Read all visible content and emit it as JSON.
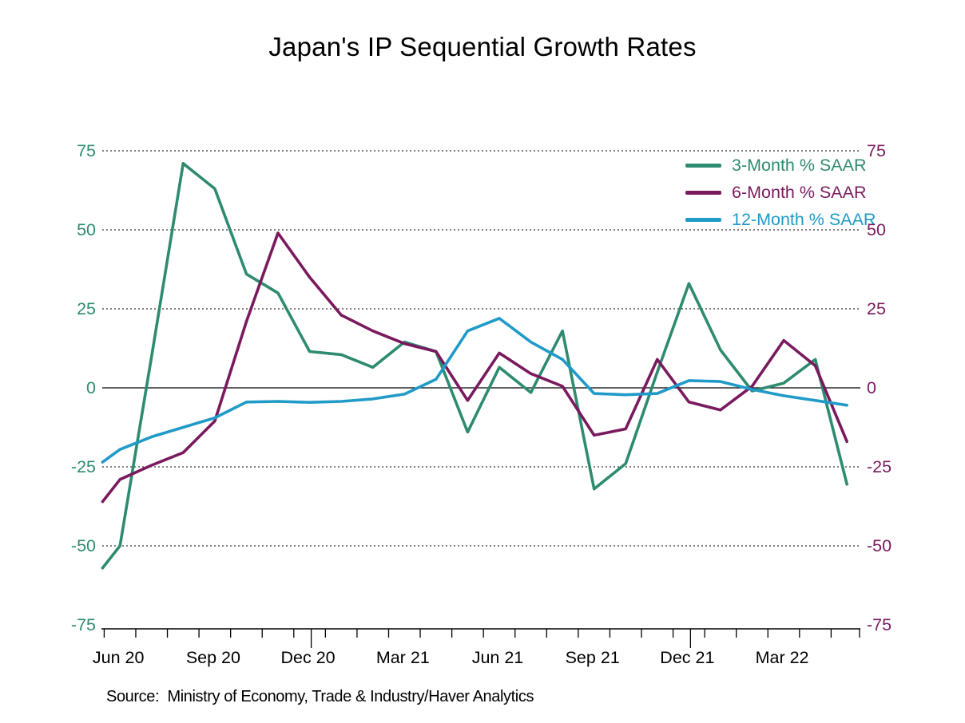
{
  "title": "Japan's IP Sequential Growth Rates",
  "source_note": "Source:  Ministry of Economy, Trade & Industry/Haver Analytics",
  "colors": {
    "green": "#2E8B70",
    "purple": "#7A1A5E",
    "blue": "#1F9AC9",
    "axis": "#000000",
    "background": "#FFFFFF"
  },
  "legend": {
    "position": "top-right",
    "items": [
      {
        "label": "3-Month % SAAR",
        "color": "#2E8B70"
      },
      {
        "label": "6-Month % SAAR",
        "color": "#7A1A5E"
      },
      {
        "label": "12-Month % SAAR",
        "color": "#1F9AC9"
      }
    ]
  },
  "y_axis": {
    "left_label_color": "#2E8B70",
    "right_label_color": "#7A1A5E",
    "ticks": [
      {
        "value": 75,
        "label": "75"
      },
      {
        "value": 50,
        "label": "50"
      },
      {
        "value": 25,
        "label": "25"
      },
      {
        "value": 0,
        "label": "0"
      },
      {
        "value": -25,
        "label": "-25"
      },
      {
        "value": -50,
        "label": "-50"
      },
      {
        "value": -75,
        "label": "-75"
      }
    ]
  },
  "x_axis": {
    "labels": [
      {
        "text": "Jun 20",
        "month_index": 0
      },
      {
        "text": "Sep 20",
        "month_index": 3
      },
      {
        "text": "Dec 20",
        "month_index": 6
      },
      {
        "text": "Mar 21",
        "month_index": 9
      },
      {
        "text": "Jun 21",
        "month_index": 12
      },
      {
        "text": "Sep 21",
        "month_index": 15
      },
      {
        "text": "Dec 21",
        "month_index": 18
      },
      {
        "text": "Mar 22",
        "month_index": 21
      }
    ]
  },
  "chart_data": {
    "type": "line",
    "title": "Japan's IP Sequential Growth Rates",
    "xlabel": "",
    "ylabel": "% SAAR",
    "ylim": [
      -75,
      75
    ],
    "y_ticks": [
      75,
      50,
      25,
      0,
      -25,
      -50,
      -75
    ],
    "grid": "dotted horizontal lines at each 25, solid line at 0",
    "legend_position": "top-right inside plot",
    "x": [
      "Jun 2020",
      "Jul 2020",
      "Aug 2020",
      "Sep 2020",
      "Oct 2020",
      "Nov 2020",
      "Dec 2020",
      "Jan 2021",
      "Feb 2021",
      "Mar 2021",
      "Apr 2021",
      "May 2021",
      "Jun 2021",
      "Jul 2021",
      "Aug 2021",
      "Sep 2021",
      "Oct 2021",
      "Nov 2021",
      "Dec 2021",
      "Jan 2022",
      "Feb 2022",
      "Mar 2022",
      "Apr 2022",
      "May 2022"
    ],
    "edge_note": "each line enters clipped at the plot's left edge slightly below its Jun 2020 value",
    "series": [
      {
        "name": "3-Month % SAAR",
        "color": "#2E8B70",
        "edge_start_value": -57,
        "values": [
          -50,
          10,
          71,
          63,
          36,
          30,
          11.5,
          10.5,
          6.5,
          14.5,
          11.5,
          -14,
          6.5,
          -1.5,
          18,
          -32,
          -24,
          5,
          33,
          12,
          -1,
          1.5,
          9,
          -30.5
        ]
      },
      {
        "name": "6-Month % SAAR",
        "color": "#7A1A5E",
        "edge_start_value": -36,
        "values": [
          -29,
          -24.5,
          -20.5,
          -10.5,
          21,
          49,
          35,
          23,
          18,
          14,
          11.5,
          -4,
          11,
          4.5,
          0.5,
          -15,
          -13,
          9,
          -4.5,
          -7,
          0.5,
          15,
          7,
          -17
        ]
      },
      {
        "name": "12-Month % SAAR",
        "color": "#1F9AC9",
        "edge_start_value": -23.5,
        "values": [
          -19.5,
          -15.5,
          -12.5,
          -9.5,
          -4.5,
          -4.3,
          -4.6,
          -4.3,
          -3.5,
          -2,
          2.7,
          18,
          22,
          14.5,
          9,
          -1.8,
          -2.2,
          -1.8,
          2.3,
          2,
          -0.5,
          -2.5,
          -4,
          -5.5
        ]
      }
    ]
  }
}
